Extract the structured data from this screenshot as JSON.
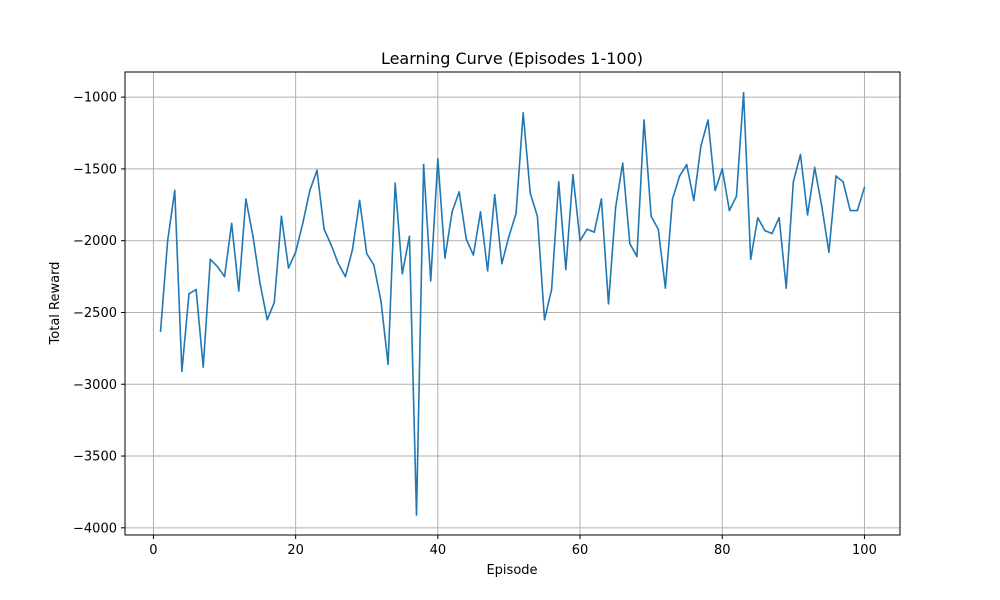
{
  "chart_data": {
    "type": "line",
    "title": "Learning Curve (Episodes 1-100)",
    "xlabel": "Episode",
    "ylabel": "Total Reward",
    "xlim": [
      -4,
      105
    ],
    "ylim": [
      -4050,
      -825
    ],
    "xticks": [
      0,
      20,
      40,
      60,
      80,
      100
    ],
    "yticks": [
      -4000,
      -3500,
      -3000,
      -2500,
      -2000,
      -1500,
      -1000
    ],
    "xtick_labels": [
      "0",
      "20",
      "40",
      "60",
      "80",
      "100"
    ],
    "ytick_labels": [
      "−4000",
      "−3500",
      "−3000",
      "−2500",
      "−2000",
      "−1500",
      "−1000"
    ],
    "grid": true,
    "line_color": "#1f77b4",
    "series": [
      {
        "x": [
          1,
          2,
          3,
          4,
          5,
          6,
          7,
          8,
          9,
          10,
          11,
          12,
          13,
          14,
          15,
          16,
          17,
          18,
          19,
          20,
          21,
          22,
          23,
          24,
          25,
          26,
          27,
          28,
          29,
          30,
          31,
          32,
          33,
          34,
          35,
          36,
          37,
          38,
          39,
          40,
          41,
          42,
          43,
          44,
          45,
          46,
          47,
          48,
          49,
          50,
          51,
          52,
          53,
          54,
          55,
          56,
          57,
          58,
          59,
          60,
          61,
          62,
          63,
          64,
          65,
          66,
          67,
          68,
          69,
          70,
          71,
          72,
          73,
          74,
          75,
          76,
          77,
          78,
          79,
          80,
          81,
          82,
          83,
          84,
          85,
          86,
          87,
          88,
          89,
          90,
          91,
          92,
          93,
          94,
          95,
          96,
          97,
          98,
          99,
          100
        ],
        "values": [
          -2630,
          -2000,
          -1650,
          -2910,
          -2370,
          -2340,
          -2880,
          -2130,
          -2180,
          -2250,
          -1880,
          -2350,
          -1710,
          -1970,
          -2300,
          -2550,
          -2430,
          -1830,
          -2190,
          -2080,
          -1880,
          -1650,
          -1510,
          -1920,
          -2030,
          -2160,
          -2250,
          -2060,
          -1720,
          -2090,
          -2170,
          -2420,
          -2860,
          -1600,
          -2230,
          -1970,
          -3910,
          -1470,
          -2280,
          -1430,
          -2120,
          -1800,
          -1660,
          -1990,
          -2100,
          -1800,
          -2210,
          -1680,
          -2160,
          -1970,
          -1810,
          -1110,
          -1670,
          -1830,
          -2550,
          -2340,
          -1590,
          -2200,
          -1540,
          -2000,
          -1920,
          -1940,
          -1710,
          -2440,
          -1770,
          -1460,
          -2020,
          -2110,
          -1160,
          -1830,
          -1920,
          -2330,
          -1710,
          -1550,
          -1470,
          -1720,
          -1340,
          -1160,
          -1650,
          -1500,
          -1790,
          -1690,
          -970,
          -2130,
          -1840,
          -1930,
          -1950,
          -1840,
          -2330,
          -1590,
          -1400,
          -1820,
          -1490,
          -1760,
          -2080,
          -1550,
          -1590,
          -1790,
          -1790,
          -1630
        ]
      }
    ]
  }
}
